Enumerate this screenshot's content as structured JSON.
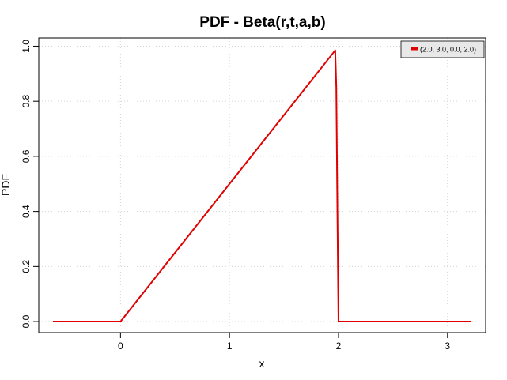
{
  "chart_data": {
    "type": "line",
    "title": "PDF - Beta(r,t,a,b)",
    "xlabel": "x",
    "ylabel": "PDF",
    "xlim": [
      -0.75,
      3.35
    ],
    "ylim": [
      -0.04,
      1.03
    ],
    "x_ticks": [
      0,
      1,
      2,
      3
    ],
    "x_tick_labels": [
      "0",
      "1",
      "2",
      "3"
    ],
    "y_ticks": [
      0.0,
      0.2,
      0.4,
      0.6,
      0.8,
      1.0
    ],
    "y_tick_labels": [
      "0.0",
      "0.2",
      "0.4",
      "0.6",
      "0.8",
      "1.0"
    ],
    "grid": true,
    "legend_position": "top-right",
    "series": [
      {
        "name": "(2.0, 3.0, 0.0, 2.0)",
        "color": "#e00000",
        "x": [
          -0.62,
          0.0,
          0.02,
          1.0,
          1.97,
          1.98,
          1.99,
          2.0,
          2.01,
          3.22
        ],
        "y": [
          0.0,
          0.0,
          0.01,
          0.5,
          0.985,
          0.85,
          0.4,
          0.0,
          0.0,
          0.0
        ]
      }
    ]
  }
}
